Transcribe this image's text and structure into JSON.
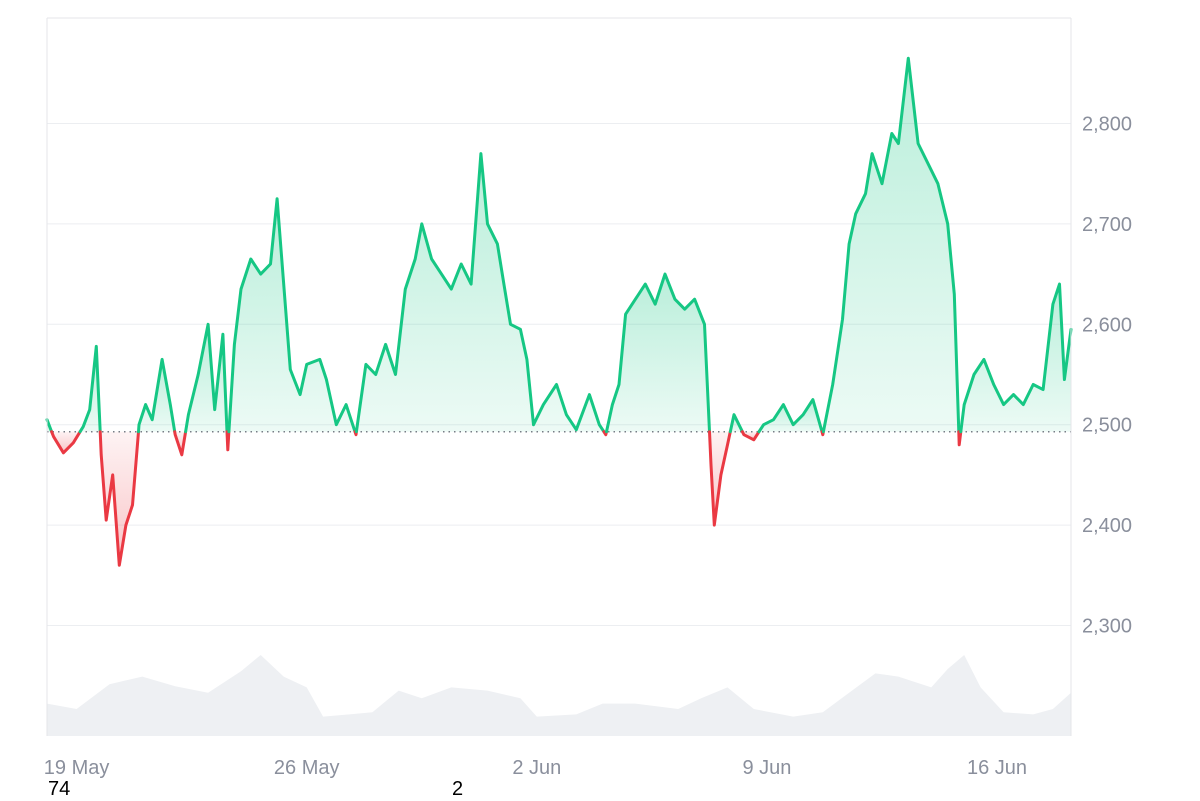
{
  "chart_data": {
    "type": "line",
    "title": "",
    "xlabel": "",
    "ylabel": "",
    "baseline": 2493,
    "ylim": [
      2190,
      2905
    ],
    "y_ticks": [
      2300,
      2400,
      2500,
      2600,
      2700,
      2800
    ],
    "y_tick_labels": [
      "2,300",
      "2,400",
      "2,500",
      "2,600",
      "2,700",
      "2,800"
    ],
    "x_ticks": [
      {
        "label": "19 May",
        "t": 3
      },
      {
        "label": "26 May",
        "t": 10
      },
      {
        "label": "2 Jun",
        "t": 17
      },
      {
        "label": "9 Jun",
        "t": 24
      },
      {
        "label": "16 Jun",
        "t": 31
      }
    ],
    "x_range": [
      2.1,
      33.25
    ],
    "grid": true,
    "colors": {
      "above": "#16c784",
      "below": "#ea3943",
      "volume": "#eef0f3",
      "grid": "#eceef1"
    },
    "series": [
      {
        "values": [
          [
            2.1,
            2505
          ],
          [
            2.3,
            2488
          ],
          [
            2.6,
            2472
          ],
          [
            2.9,
            2482
          ],
          [
            3.2,
            2498
          ],
          [
            3.4,
            2515
          ],
          [
            3.6,
            2578
          ],
          [
            3.75,
            2470
          ],
          [
            3.9,
            2405
          ],
          [
            4.1,
            2450
          ],
          [
            4.3,
            2360
          ],
          [
            4.5,
            2400
          ],
          [
            4.7,
            2420
          ],
          [
            4.9,
            2500
          ],
          [
            5.1,
            2520
          ],
          [
            5.3,
            2505
          ],
          [
            5.6,
            2565
          ],
          [
            5.85,
            2520
          ],
          [
            6.0,
            2490
          ],
          [
            6.2,
            2470
          ],
          [
            6.4,
            2510
          ],
          [
            6.7,
            2550
          ],
          [
            7.0,
            2600
          ],
          [
            7.2,
            2515
          ],
          [
            7.45,
            2590
          ],
          [
            7.6,
            2475
          ],
          [
            7.8,
            2580
          ],
          [
            8.0,
            2635
          ],
          [
            8.3,
            2665
          ],
          [
            8.6,
            2650
          ],
          [
            8.9,
            2660
          ],
          [
            9.1,
            2725
          ],
          [
            9.3,
            2640
          ],
          [
            9.5,
            2555
          ],
          [
            9.8,
            2530
          ],
          [
            10.0,
            2560
          ],
          [
            10.4,
            2565
          ],
          [
            10.6,
            2545
          ],
          [
            10.9,
            2500
          ],
          [
            11.2,
            2520
          ],
          [
            11.5,
            2490
          ],
          [
            11.8,
            2560
          ],
          [
            12.1,
            2550
          ],
          [
            12.4,
            2580
          ],
          [
            12.7,
            2550
          ],
          [
            13.0,
            2635
          ],
          [
            13.3,
            2665
          ],
          [
            13.5,
            2700
          ],
          [
            13.8,
            2665
          ],
          [
            14.1,
            2650
          ],
          [
            14.4,
            2635
          ],
          [
            14.7,
            2660
          ],
          [
            15.0,
            2640
          ],
          [
            15.3,
            2770
          ],
          [
            15.5,
            2700
          ],
          [
            15.8,
            2680
          ],
          [
            16.0,
            2640
          ],
          [
            16.2,
            2600
          ],
          [
            16.5,
            2595
          ],
          [
            16.7,
            2565
          ],
          [
            16.9,
            2500
          ],
          [
            17.2,
            2520
          ],
          [
            17.6,
            2540
          ],
          [
            17.9,
            2510
          ],
          [
            18.2,
            2495
          ],
          [
            18.6,
            2530
          ],
          [
            18.9,
            2500
          ],
          [
            19.1,
            2490
          ],
          [
            19.3,
            2520
          ],
          [
            19.5,
            2540
          ],
          [
            19.7,
            2610
          ],
          [
            20.0,
            2625
          ],
          [
            20.3,
            2640
          ],
          [
            20.6,
            2620
          ],
          [
            20.9,
            2650
          ],
          [
            21.2,
            2625
          ],
          [
            21.5,
            2615
          ],
          [
            21.8,
            2625
          ],
          [
            22.1,
            2600
          ],
          [
            22.3,
            2460
          ],
          [
            22.4,
            2400
          ],
          [
            22.6,
            2450
          ],
          [
            22.8,
            2480
          ],
          [
            23.0,
            2510
          ],
          [
            23.3,
            2490
          ],
          [
            23.6,
            2485
          ],
          [
            23.9,
            2500
          ],
          [
            24.2,
            2505
          ],
          [
            24.5,
            2520
          ],
          [
            24.8,
            2500
          ],
          [
            25.1,
            2510
          ],
          [
            25.4,
            2525
          ],
          [
            25.7,
            2490
          ],
          [
            26.0,
            2540
          ],
          [
            26.3,
            2605
          ],
          [
            26.5,
            2680
          ],
          [
            26.7,
            2710
          ],
          [
            27.0,
            2730
          ],
          [
            27.2,
            2770
          ],
          [
            27.5,
            2740
          ],
          [
            27.8,
            2790
          ],
          [
            28.0,
            2780
          ],
          [
            28.3,
            2865
          ],
          [
            28.6,
            2780
          ],
          [
            28.9,
            2760
          ],
          [
            29.2,
            2740
          ],
          [
            29.5,
            2700
          ],
          [
            29.7,
            2630
          ],
          [
            29.85,
            2480
          ],
          [
            30.0,
            2520
          ],
          [
            30.3,
            2550
          ],
          [
            30.6,
            2565
          ],
          [
            30.9,
            2540
          ],
          [
            31.2,
            2520
          ],
          [
            31.5,
            2530
          ],
          [
            31.8,
            2520
          ],
          [
            32.1,
            2540
          ],
          [
            32.4,
            2535
          ],
          [
            32.7,
            2620
          ],
          [
            32.9,
            2640
          ],
          [
            33.05,
            2545
          ],
          [
            33.25,
            2595
          ]
        ]
      }
    ],
    "volume": [
      [
        2.1,
        0.3
      ],
      [
        3.0,
        0.25
      ],
      [
        4.0,
        0.48
      ],
      [
        5.0,
        0.55
      ],
      [
        6.0,
        0.46
      ],
      [
        7.0,
        0.4
      ],
      [
        8.0,
        0.6
      ],
      [
        8.6,
        0.75
      ],
      [
        9.3,
        0.55
      ],
      [
        10.0,
        0.45
      ],
      [
        10.5,
        0.18
      ],
      [
        11.3,
        0.2
      ],
      [
        12.0,
        0.22
      ],
      [
        12.8,
        0.42
      ],
      [
        13.5,
        0.35
      ],
      [
        14.4,
        0.45
      ],
      [
        15.5,
        0.42
      ],
      [
        16.5,
        0.35
      ],
      [
        17.0,
        0.18
      ],
      [
        18.2,
        0.2
      ],
      [
        19.0,
        0.3
      ],
      [
        20.0,
        0.3
      ],
      [
        21.3,
        0.25
      ],
      [
        22.0,
        0.35
      ],
      [
        22.8,
        0.45
      ],
      [
        23.6,
        0.25
      ],
      [
        24.8,
        0.18
      ],
      [
        25.7,
        0.22
      ],
      [
        26.5,
        0.4
      ],
      [
        27.3,
        0.58
      ],
      [
        28.0,
        0.55
      ],
      [
        29.0,
        0.45
      ],
      [
        29.5,
        0.62
      ],
      [
        30.0,
        0.75
      ],
      [
        30.5,
        0.45
      ],
      [
        31.2,
        0.22
      ],
      [
        32.1,
        0.2
      ],
      [
        32.7,
        0.25
      ],
      [
        33.25,
        0.4
      ]
    ]
  },
  "stray_labels": [
    "74",
    "2"
  ]
}
